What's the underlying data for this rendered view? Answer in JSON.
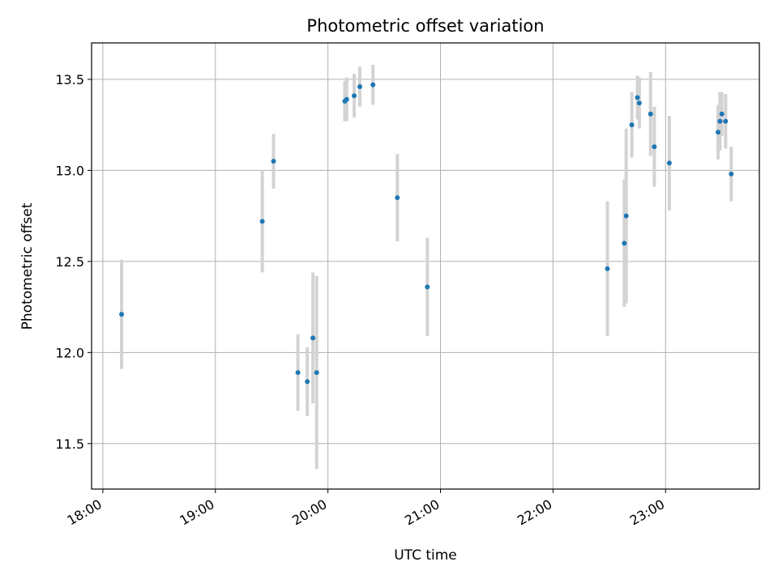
{
  "chart_data": {
    "type": "scatter",
    "title": "Photometric offset variation",
    "xlabel": "UTC time",
    "ylabel": "Photometric offset",
    "x_ticks": [
      "18:00",
      "19:00",
      "20:00",
      "21:00",
      "22:00",
      "23:00"
    ],
    "y_ticks": [
      11.5,
      12.0,
      12.5,
      13.0,
      13.5
    ],
    "xlim": [
      "17:54",
      "23:50"
    ],
    "ylim": [
      11.25,
      13.7
    ],
    "grid": true,
    "point_color": "#1f77b4",
    "errorbar_color": "#d3d3d3",
    "points": [
      {
        "t": "18:10",
        "y": 12.21,
        "err": 0.3
      },
      {
        "t": "19:25",
        "y": 12.72,
        "err": 0.28
      },
      {
        "t": "19:31",
        "y": 13.05,
        "err": 0.15
      },
      {
        "t": "19:44",
        "y": 11.89,
        "err": 0.21
      },
      {
        "t": "19:49",
        "y": 11.84,
        "err": 0.19
      },
      {
        "t": "19:52",
        "y": 12.08,
        "err": 0.36
      },
      {
        "t": "19:54",
        "y": 11.89,
        "err": 0.53
      },
      {
        "t": "20:09",
        "y": 13.38,
        "err": 0.11
      },
      {
        "t": "20:10",
        "y": 13.39,
        "err": 0.12
      },
      {
        "t": "20:14",
        "y": 13.41,
        "err": 0.12
      },
      {
        "t": "20:17",
        "y": 13.46,
        "err": 0.11
      },
      {
        "t": "20:24",
        "y": 13.47,
        "err": 0.11
      },
      {
        "t": "20:37",
        "y": 12.85,
        "err": 0.24
      },
      {
        "t": "20:53",
        "y": 12.36,
        "err": 0.27
      },
      {
        "t": "22:29",
        "y": 12.46,
        "err": 0.37
      },
      {
        "t": "22:38",
        "y": 12.6,
        "err": 0.35
      },
      {
        "t": "22:39",
        "y": 12.75,
        "err": 0.48
      },
      {
        "t": "22:42",
        "y": 13.25,
        "err": 0.18
      },
      {
        "t": "22:45",
        "y": 13.4,
        "err": 0.12
      },
      {
        "t": "22:46",
        "y": 13.37,
        "err": 0.14
      },
      {
        "t": "22:52",
        "y": 13.31,
        "err": 0.23
      },
      {
        "t": "22:54",
        "y": 13.13,
        "err": 0.22
      },
      {
        "t": "23:02",
        "y": 13.04,
        "err": 0.26
      },
      {
        "t": "23:28",
        "y": 13.21,
        "err": 0.15
      },
      {
        "t": "23:29",
        "y": 13.27,
        "err": 0.16
      },
      {
        "t": "23:30",
        "y": 13.31,
        "err": 0.12
      },
      {
        "t": "23:32",
        "y": 13.27,
        "err": 0.15
      },
      {
        "t": "23:35",
        "y": 12.98,
        "err": 0.15
      }
    ]
  }
}
